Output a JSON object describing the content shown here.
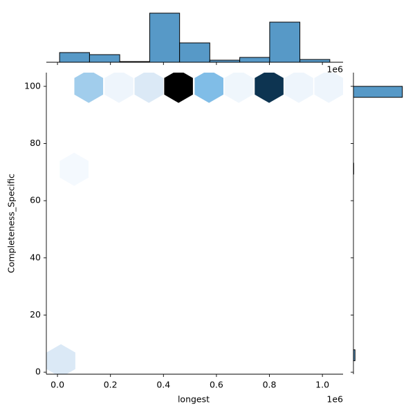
{
  "chart_data": {
    "type": "hexbin",
    "x_label": "longest",
    "y_label": "Completeness_Specific",
    "x_offset_label": "1e6",
    "xlim": [
      -0.042,
      1.078
    ],
    "ylim": [
      -0.7,
      104.8
    ],
    "xticks": [
      {
        "value": 0,
        "label": "0.0"
      },
      0.2,
      0.4,
      0.6,
      0.8,
      {
        "value": 1,
        "label": "1.0"
      }
    ],
    "yticks": [
      0,
      20,
      40,
      60,
      80,
      100
    ],
    "hexes": {
      "x": [
        0.013,
        0.063,
        0.118,
        0.232,
        0.345,
        0.457,
        0.572,
        0.684,
        0.799,
        0.911,
        1.024
      ],
      "y": [
        4,
        71,
        100,
        100,
        100,
        100,
        100,
        100,
        100,
        100,
        100
      ],
      "counts": [
        6,
        1,
        20,
        3,
        8,
        71,
        28,
        2,
        62,
        3,
        2
      ],
      "colors": [
        "#dbe9f6",
        "#f4f9fe",
        "#a1cdec",
        "#eef5fc",
        "#dbe9f6",
        "#000000",
        "#80bde7",
        "#eff6fc",
        "#0d3451",
        "#eef5fc",
        "#eef5fc"
      ]
    },
    "top_hist": {
      "bins": [
        0.008,
        0.121,
        0.235,
        0.348,
        0.461,
        0.575,
        0.688,
        0.801,
        0.915,
        1.028
      ],
      "counts": [
        14,
        11,
        1,
        71,
        28,
        3,
        7,
        58,
        4
      ],
      "ylim": [
        0,
        80
      ],
      "color": "#5799c7"
    },
    "right_hist": {
      "bins": [
        4,
        7.84,
        11.68,
        15.52,
        19.36,
        23.2,
        27.04,
        30.88,
        34.72,
        38.56,
        42.4,
        46.24,
        50.08,
        53.92,
        57.76,
        61.6,
        65.44,
        69.28,
        73.12,
        76.96,
        80.8,
        84.64,
        88.48,
        92.32,
        96.16,
        100
      ],
      "counts": [
        6,
        0,
        0,
        0,
        0,
        0,
        0,
        0,
        0,
        0,
        0,
        0,
        0,
        0,
        0,
        0,
        0,
        1,
        0,
        0,
        0,
        0,
        0,
        0,
        190
      ],
      "xlim": [
        0,
        215
      ],
      "color": "#5799c7"
    }
  }
}
